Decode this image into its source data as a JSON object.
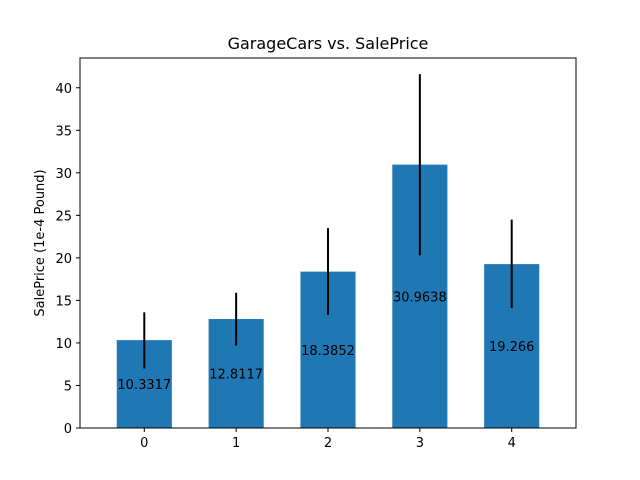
{
  "chart_data": {
    "type": "bar",
    "title": "GarageCars vs. SalePrice",
    "xlabel": "",
    "ylabel": "SalePrice (1e-4 Pound)",
    "categories": [
      "0",
      "1",
      "2",
      "3",
      "4"
    ],
    "values": [
      10.3317,
      12.8117,
      18.3852,
      30.9638,
      19.266
    ],
    "value_labels": [
      "10.3317",
      "12.8117",
      "18.3852",
      "30.9638",
      "19.266"
    ],
    "error_low": [
      7.0,
      9.7,
      13.3,
      20.3,
      14.1
    ],
    "error_high": [
      13.6,
      15.9,
      23.5,
      41.6,
      24.5
    ],
    "ylim": [
      0,
      43.5
    ],
    "yticks": [
      0,
      5,
      10,
      15,
      20,
      25,
      30,
      35,
      40
    ],
    "bar_color": "#1f77b4",
    "errorbar_color": "#000000",
    "grid": false,
    "legend": "none"
  }
}
